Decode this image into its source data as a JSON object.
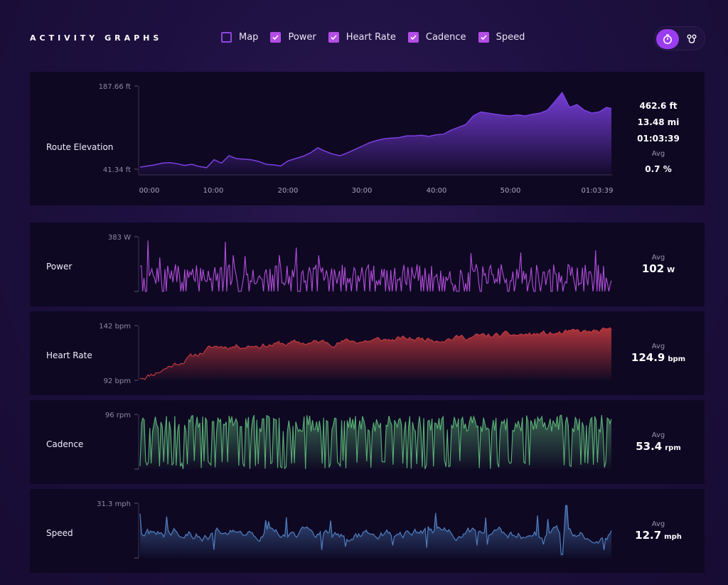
{
  "header": {
    "title": "ACTIVITY GRAPHS",
    "toggles": [
      {
        "label": "Map",
        "checked": false
      },
      {
        "label": "Power",
        "checked": true
      },
      {
        "label": "Heart Rate",
        "checked": true
      },
      {
        "label": "Cadence",
        "checked": true
      },
      {
        "label": "Speed",
        "checked": true
      }
    ],
    "view_switch": [
      {
        "icon": "stopwatch-icon",
        "active": true
      },
      {
        "icon": "route-pins-icon",
        "active": false
      }
    ]
  },
  "colors": {
    "elevation": "#7b3fe0",
    "power": "#b14fd8",
    "heart_rate": "#c0393f",
    "cadence": "#5bb276",
    "speed": "#4f7fc0",
    "accent": "#b44ee6"
  },
  "panels": {
    "elevation": {
      "label": "Route Elevation",
      "y_max_label": "187.66 ft",
      "y_min_label": "41.34 ft",
      "x_ticks": [
        "00:00",
        "10:00",
        "20:00",
        "30:00",
        "40:00",
        "50:00",
        "01:03:39"
      ],
      "stats": [
        "462.6 ft",
        "13.48 mi",
        "01:03:39"
      ],
      "avg_label": "Avg",
      "avg_value": "0.7 %"
    },
    "power": {
      "label": "Power",
      "y_max_label": "383 W",
      "avg_label": "Avg",
      "avg_value": "102",
      "avg_unit": "W"
    },
    "heart_rate": {
      "label": "Heart Rate",
      "y_max_label": "142 bpm",
      "y_min_label": "92 bpm",
      "avg_label": "Avg",
      "avg_value": "124.9",
      "avg_unit": "bpm"
    },
    "cadence": {
      "label": "Cadence",
      "y_max_label": "96 rpm",
      "avg_label": "Avg",
      "avg_value": "53.4",
      "avg_unit": "rpm"
    },
    "speed": {
      "label": "Speed",
      "y_max_label": "31.3 mph",
      "avg_label": "Avg",
      "avg_value": "12.7",
      "avg_unit": "mph"
    }
  },
  "chart_data": [
    {
      "type": "area",
      "title": "",
      "ylabel": "Route Elevation",
      "xlabel": "",
      "ylim": [
        41.34,
        187.66
      ],
      "x_unit": "minutes",
      "xlim": [
        0,
        63.65
      ],
      "x": [
        0,
        1,
        2,
        3,
        4,
        5,
        6,
        7,
        8,
        9,
        10,
        11,
        12,
        13,
        14,
        15,
        16,
        17,
        18,
        19,
        20,
        21,
        22,
        23,
        24,
        25,
        26,
        27,
        28,
        29,
        30,
        31,
        32,
        33,
        34,
        35,
        36,
        37,
        38,
        39,
        40,
        41,
        42,
        43,
        44,
        45,
        46,
        47,
        48,
        49,
        50,
        51,
        52,
        53,
        54,
        55,
        56,
        57,
        58,
        59,
        60,
        61,
        62,
        63,
        63.65
      ],
      "values": [
        45,
        47,
        49,
        52,
        53,
        51,
        48,
        50,
        46,
        44,
        58,
        52,
        65,
        60,
        59,
        58,
        55,
        50,
        49,
        47,
        56,
        60,
        64,
        70,
        79,
        73,
        68,
        65,
        70,
        76,
        82,
        88,
        92,
        95,
        96,
        97,
        100,
        100,
        101,
        99,
        102,
        103,
        110,
        115,
        120,
        135,
        142,
        140,
        138,
        136,
        135,
        137,
        135,
        138,
        140,
        145,
        160,
        176,
        150,
        155,
        145,
        140,
        142,
        150,
        148
      ]
    },
    {
      "type": "line",
      "ylabel": "Power",
      "ylim": [
        0,
        383
      ],
      "avg": 102
    },
    {
      "type": "area",
      "ylabel": "Heart Rate",
      "ylim": [
        92,
        142
      ],
      "avg": 124.9
    },
    {
      "type": "line",
      "ylabel": "Cadence",
      "ylim": [
        0,
        96
      ],
      "avg": 53.4
    },
    {
      "type": "area",
      "ylabel": "Speed",
      "ylim": [
        0,
        31.3
      ],
      "avg": 12.7
    }
  ]
}
